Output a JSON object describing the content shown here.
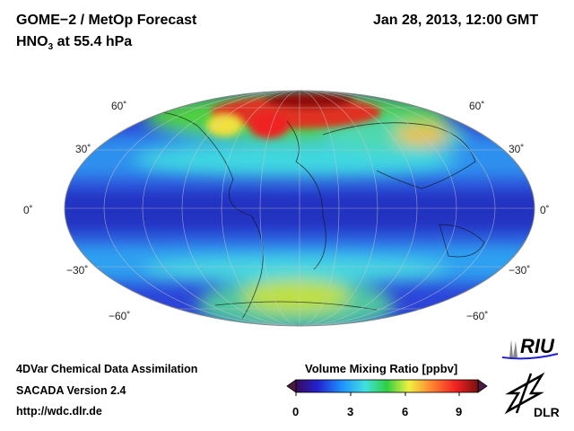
{
  "header": {
    "title": "GOME−2 / MetOp Forecast",
    "species_main": "HNO",
    "species_sub": "3",
    "level": " at 55.4 hPa",
    "datetime": "Jan 28, 2013, 12:00 GMT"
  },
  "map": {
    "projection": "Mollweide",
    "lat_labels": [
      "60˚",
      "30˚",
      "0˚",
      "−30˚",
      "−60˚"
    ]
  },
  "colorbar": {
    "title": "Volume Mixing Ratio [ppbv]",
    "ticks": [
      "0",
      "3",
      "6",
      "9"
    ],
    "range": [
      0,
      10
    ],
    "colors": [
      "#3a0a5a",
      "#2222d0",
      "#1e90ff",
      "#40e0e0",
      "#30d040",
      "#f0f040",
      "#ff8030",
      "#f02020",
      "#7a1010"
    ]
  },
  "footer": {
    "line1": "4DVar Chemical Data Assimilation",
    "line2": "SACADA Version 2.4",
    "line3": "http://wdc.dlr.de"
  },
  "logos": {
    "riu": "RIU",
    "dlr": "DLR"
  }
}
